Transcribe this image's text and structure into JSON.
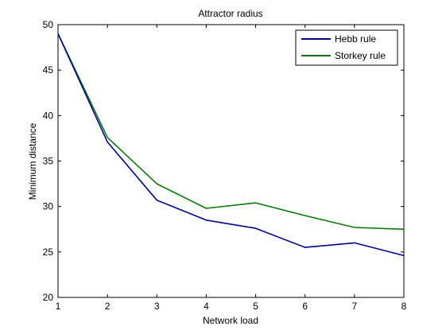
{
  "chart_data": {
    "type": "line",
    "title": "Attractor radius",
    "xlabel": "Network load",
    "ylabel": "Minimum distance",
    "xlim": [
      1,
      8
    ],
    "ylim": [
      20,
      50
    ],
    "xticks": [
      1,
      2,
      3,
      4,
      5,
      6,
      7,
      8
    ],
    "yticks": [
      20,
      25,
      30,
      35,
      40,
      45,
      50
    ],
    "grid": false,
    "legend_position": "top-right",
    "x": [
      1,
      2,
      3,
      4,
      5,
      6,
      7,
      8
    ],
    "series": [
      {
        "name": "Hebb rule",
        "color": "#0000aa",
        "values": [
          49,
          37.1,
          30.7,
          28.5,
          27.6,
          25.5,
          26.0,
          24.6
        ]
      },
      {
        "name": "Storkey rule",
        "color": "#007f00",
        "values": [
          49,
          37.6,
          32.5,
          29.8,
          30.4,
          29.0,
          27.7,
          27.5
        ]
      }
    ]
  }
}
